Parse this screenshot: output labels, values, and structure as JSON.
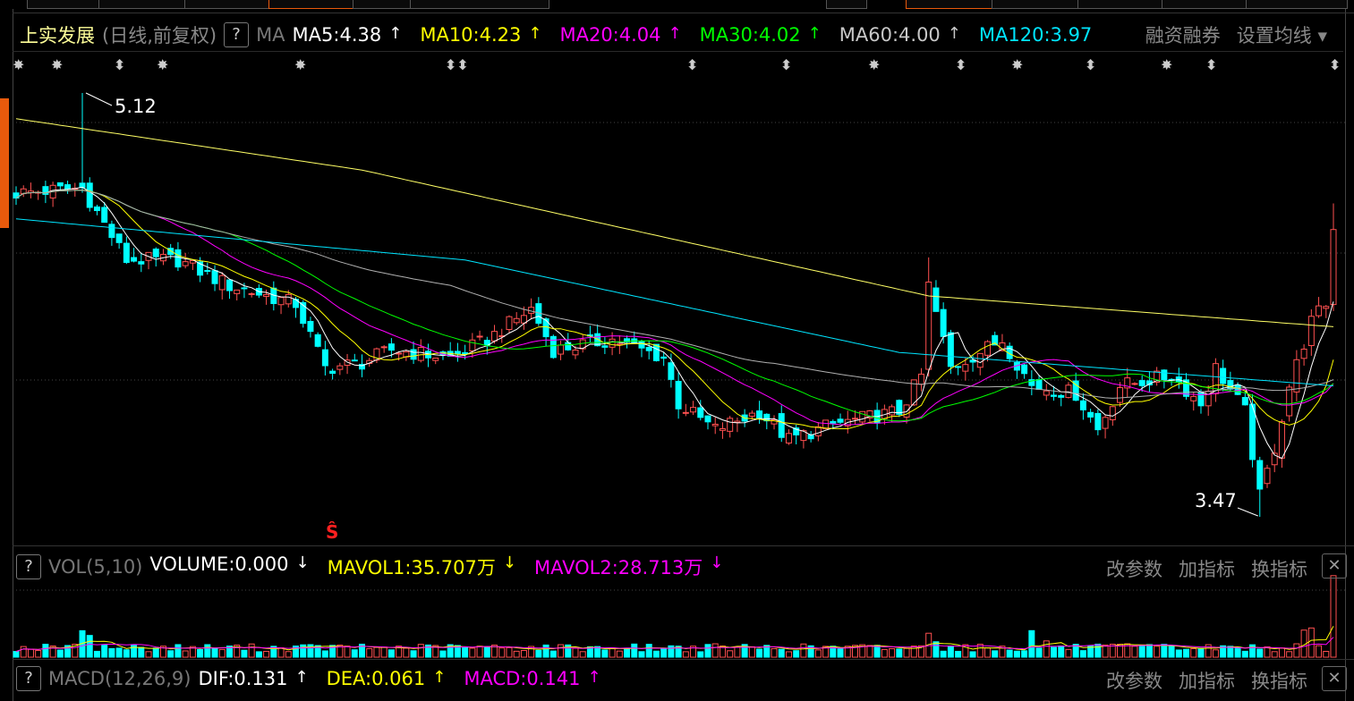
{
  "header": {
    "stock_name": "上实发展",
    "period": "(日线,前复权)",
    "help": "?",
    "ma_label": "MA",
    "ma": [
      {
        "label": "MA5:4.38",
        "arrow": "↑",
        "color": "#ffffff"
      },
      {
        "label": "MA10:4.23",
        "arrow": "↑",
        "color": "#ffff00"
      },
      {
        "label": "MA20:4.04",
        "arrow": "↑",
        "color": "#ff00ff"
      },
      {
        "label": "MA30:4.02",
        "arrow": "↑",
        "color": "#00ff00"
      },
      {
        "label": "MA60:4.00",
        "arrow": "↑",
        "color": "#c8c8c8"
      },
      {
        "label": "MA120:3.97",
        "arrow": "",
        "color": "#00e5ff"
      }
    ],
    "margin_trading": "融资融券",
    "set_ma": "设置均线 ▾"
  },
  "events": [
    "✸",
    "✸",
    "⬍",
    "✸",
    "✸",
    "⬍⬍",
    "⬍",
    "⬍",
    "✸",
    "⬍",
    "✸",
    "⬍",
    "✸",
    "⬍",
    "⬍"
  ],
  "price_labels": {
    "high": "5.12",
    "low": "3.47"
  },
  "signal_mark": "Ŝ",
  "vol_panel": {
    "help": "?",
    "name": "VOL(5,10)",
    "items": [
      {
        "label": "VOLUME:0.000",
        "arrow": "↓",
        "color": "#ffffff"
      },
      {
        "label": "MAVOL1:35.707万",
        "arrow": "↓",
        "color": "#ffff00"
      },
      {
        "label": "MAVOL2:28.713万",
        "arrow": "↓",
        "color": "#ff00ff"
      }
    ]
  },
  "macd_panel": {
    "help": "?",
    "name": "MACD(12,26,9)",
    "items": [
      {
        "label": "DIF:0.131",
        "arrow": "↑",
        "color": "#ffffff"
      },
      {
        "label": "DEA:0.061",
        "arrow": "↑",
        "color": "#ffff00"
      },
      {
        "label": "MACD:0.141",
        "arrow": "↑",
        "color": "#ff00ff"
      }
    ]
  },
  "panel_tools": [
    "改参数",
    "加指标",
    "换指标"
  ],
  "close_icon": "✕",
  "colors": {
    "up": "#ff5050",
    "down": "#00ffff",
    "grid": "#444444",
    "accent": "#e85a0c"
  },
  "chart_data": {
    "type": "candlestick",
    "count": 180,
    "price_range": [
      3.47,
      5.12
    ],
    "close_keypoints": [
      [
        0,
        4.73
      ],
      [
        9,
        4.75
      ],
      [
        15,
        4.47
      ],
      [
        22,
        4.47
      ],
      [
        29,
        4.37
      ],
      [
        38,
        4.3
      ],
      [
        42,
        4.05
      ],
      [
        47,
        4.07
      ],
      [
        51,
        4.12
      ],
      [
        59,
        4.09
      ],
      [
        64,
        4.16
      ],
      [
        70,
        4.28
      ],
      [
        73,
        4.12
      ],
      [
        81,
        4.16
      ],
      [
        88,
        4.09
      ],
      [
        90,
        3.91
      ],
      [
        95,
        3.81
      ],
      [
        101,
        3.88
      ],
      [
        105,
        3.77
      ],
      [
        111,
        3.83
      ],
      [
        120,
        3.88
      ],
      [
        123,
        4.02
      ],
      [
        124,
        4.37
      ],
      [
        127,
        4.05
      ],
      [
        134,
        4.16
      ],
      [
        138,
        3.98
      ],
      [
        144,
        3.95
      ],
      [
        147,
        3.81
      ],
      [
        150,
        3.98
      ],
      [
        157,
        4.02
      ],
      [
        161,
        3.91
      ],
      [
        163,
        4.05
      ],
      [
        167,
        3.88
      ],
      [
        169,
        3.55
      ],
      [
        171,
        3.74
      ],
      [
        173,
        3.98
      ],
      [
        176,
        4.23
      ],
      [
        178,
        4.3
      ],
      [
        179,
        4.59
      ]
    ],
    "ma120_keypoints": [
      [
        0,
        4.63
      ],
      [
        61,
        4.47
      ],
      [
        120,
        4.11
      ],
      [
        179,
        3.98
      ]
    ],
    "ma250_keypoints": [
      [
        0,
        5.02
      ],
      [
        47,
        4.82
      ],
      [
        124,
        4.33
      ],
      [
        179,
        4.21
      ]
    ],
    "volume_spikes": [
      [
        9,
        4.5
      ],
      [
        10,
        2.5
      ],
      [
        124,
        4.0
      ],
      [
        125,
        2.5
      ],
      [
        138,
        2.2
      ],
      [
        140,
        2.0
      ],
      [
        175,
        2.2
      ],
      [
        176,
        2.5
      ],
      [
        179,
        7.5
      ]
    ]
  }
}
